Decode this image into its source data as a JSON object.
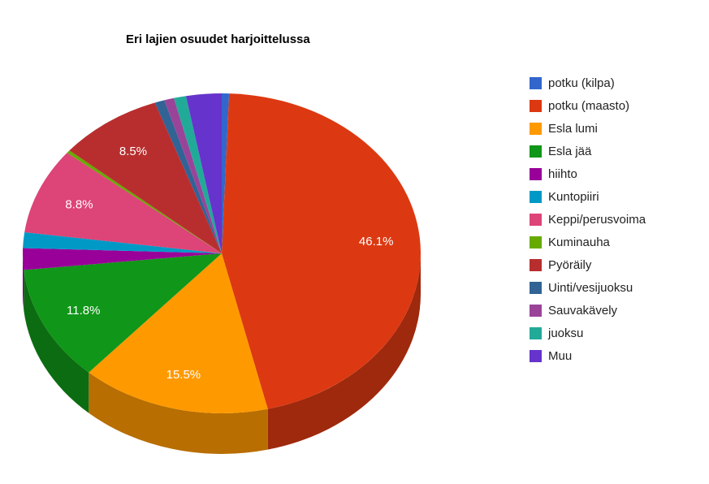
{
  "chart_data": {
    "type": "pie",
    "title": "Eri lajien osuudet harjoittelussa",
    "legend_position": "right",
    "three_d": true,
    "series": [
      {
        "name": "potku (kilpa)",
        "value": 0.6,
        "color": "#3366cc",
        "label": ""
      },
      {
        "name": "potku (maasto)",
        "value": 46.1,
        "color": "#dc3912",
        "label": "46.1%"
      },
      {
        "name": "Esla lumi",
        "value": 15.5,
        "color": "#ff9900",
        "label": "15.5%"
      },
      {
        "name": "Esla jää",
        "value": 11.8,
        "color": "#109618",
        "label": "11.8%"
      },
      {
        "name": "hiihto",
        "value": 2.2,
        "color": "#990099",
        "label": ""
      },
      {
        "name": "Kuntopiiri",
        "value": 1.6,
        "color": "#0099c6",
        "label": ""
      },
      {
        "name": "Keppi/perusvoima",
        "value": 8.8,
        "color": "#dd4477",
        "label": "8.8%"
      },
      {
        "name": "Kuminauha",
        "value": 0.3,
        "color": "#66aa00",
        "label": ""
      },
      {
        "name": "Pyöräily",
        "value": 8.5,
        "color": "#b82e2e",
        "label": "8.5%"
      },
      {
        "name": "Uinti/vesijuoksu",
        "value": 0.8,
        "color": "#316395",
        "label": ""
      },
      {
        "name": "Sauvakävely",
        "value": 0.8,
        "color": "#994499",
        "label": ""
      },
      {
        "name": "juoksu",
        "value": 1.0,
        "color": "#22aa99",
        "label": ""
      },
      {
        "name": "Muu",
        "value": 2.9,
        "color": "#6633cc",
        "label": ""
      }
    ]
  }
}
